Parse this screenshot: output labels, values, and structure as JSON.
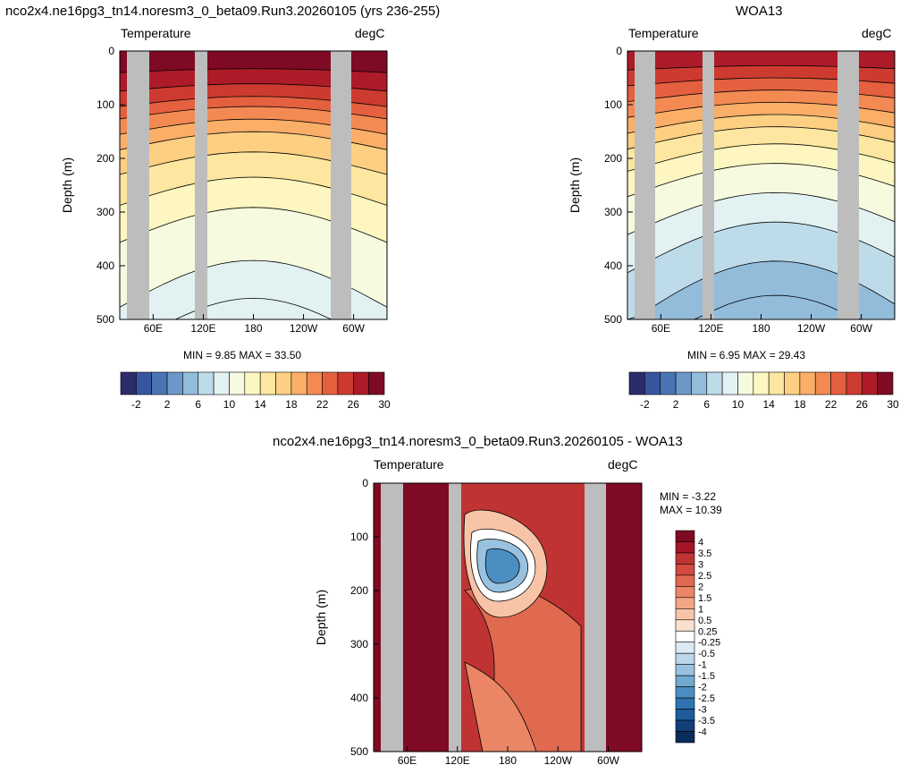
{
  "panels": [
    {
      "title": "nco2x4.ne16pg3_tn14.noresm3_0_beta09.Run3.20260105 (yrs 236-255)",
      "left_label": "Temperature",
      "right_label": "degC",
      "ylabel": "Depth (m)",
      "stats": "MIN =   9.85  MAX =  33.50"
    },
    {
      "title": "WOA13",
      "left_label": "Temperature",
      "right_label": "degC",
      "ylabel": "Depth (m)",
      "stats": "MIN =   6.95  MAX =  29.43"
    },
    {
      "title": "nco2x4.ne16pg3_tn14.noresm3_0_beta09.Run3.20260105 - WOA13",
      "left_label": "Temperature",
      "right_label": "degC",
      "ylabel": "Depth (m)",
      "stats_min": "MIN =  -3.22",
      "stats_max": "MAX =  10.39"
    }
  ],
  "chart_data": [
    {
      "type": "heatmap",
      "title": "nco2x4.ne16pg3_tn14.noresm3_0_beta09.Run3.20260105 (yrs 236-255)",
      "ylabel": "Depth (m)",
      "ylim": [
        500,
        0
      ],
      "yticks": [
        "0",
        "100",
        "200",
        "300",
        "400",
        "500"
      ],
      "xticks": [
        "60E",
        "120E",
        "180",
        "120W",
        "60W"
      ],
      "min": 9.85,
      "max": 33.5,
      "colorbar_labels": [
        "-2",
        "2",
        "6",
        "10",
        "14",
        "18",
        "22",
        "26",
        "30"
      ],
      "colorbar_colors": [
        "#2b2c6b",
        "#3a55a0",
        "#4a74b4",
        "#6b98c8",
        "#93bcdb",
        "#bedbea",
        "#e2f2f3",
        "#f6fbe0",
        "#fdf6c0",
        "#fde7a0",
        "#fdcf82",
        "#fbae68",
        "#f48a53",
        "#e5603f",
        "#cd3a30",
        "#ad1b29",
        "#7f0a23"
      ],
      "annotation": "MIN =   9.85  MAX =  33.50"
    },
    {
      "type": "heatmap",
      "title": "WOA13",
      "ylabel": "Depth (m)",
      "ylim": [
        500,
        0
      ],
      "yticks": [
        "0",
        "100",
        "200",
        "300",
        "400",
        "500"
      ],
      "xticks": [
        "60E",
        "120E",
        "180",
        "120W",
        "60W"
      ],
      "min": 6.95,
      "max": 29.43,
      "colorbar_labels": [
        "-2",
        "2",
        "6",
        "10",
        "14",
        "18",
        "22",
        "26",
        "30"
      ],
      "colorbar_colors": [
        "#2b2c6b",
        "#3a55a0",
        "#4a74b4",
        "#6b98c8",
        "#93bcdb",
        "#bedbea",
        "#e2f2f3",
        "#f6fbe0",
        "#fdf6c0",
        "#fde7a0",
        "#fdcf82",
        "#fbae68",
        "#f48a53",
        "#e5603f",
        "#cd3a30",
        "#ad1b29",
        "#7f0a23"
      ],
      "annotation": "MIN =   6.95  MAX =  29.43"
    },
    {
      "type": "heatmap",
      "title": "nco2x4.ne16pg3_tn14.noresm3_0_beta09.Run3.20260105 - WOA13",
      "ylabel": "Depth (m)",
      "ylim": [
        500,
        0
      ],
      "yticks": [
        "0",
        "100",
        "200",
        "300",
        "400",
        "500"
      ],
      "xticks": [
        "60E",
        "120E",
        "180",
        "120W",
        "60W"
      ],
      "min": -3.22,
      "max": 10.39,
      "colorbar_labels": [
        "4",
        "3.5",
        "3",
        "2.5",
        "2",
        "1.5",
        "1",
        "0.5",
        "0.25",
        "-0.25",
        "-0.5",
        "-1",
        "-1.5",
        "-2",
        "-2.5",
        "-3",
        "-3.5",
        "-4"
      ],
      "colorbar_colors": [
        "#7f0a23",
        "#a5152a",
        "#c03333",
        "#d24b3e",
        "#e06a50",
        "#ea8666",
        "#f3a585",
        "#f8c4a8",
        "#fbe0cf",
        "#ffffff",
        "#dbeaf3",
        "#bcd7ea",
        "#98c2df",
        "#72a9d1",
        "#4b8ec2",
        "#2f74b1",
        "#1f5c9b",
        "#123f78",
        "#0a2c5a"
      ],
      "annotation": [
        "MIN =  -3.22",
        "MAX =  10.39"
      ]
    }
  ]
}
